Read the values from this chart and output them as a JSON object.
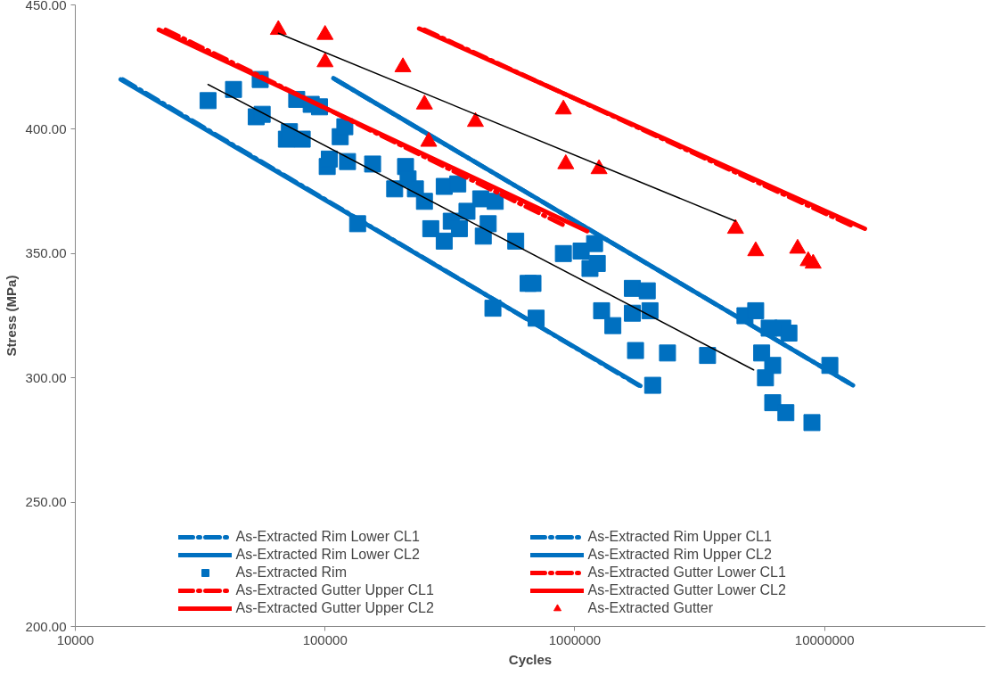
{
  "chart_data": {
    "type": "scatter",
    "xlabel": "Cycles",
    "ylabel": "Stress (MPa)",
    "log": "x",
    "grid": false,
    "legend": "bottom",
    "xlim": [
      10000,
      44000000
    ],
    "xticks": [
      10000,
      100000,
      1000000,
      10000000
    ],
    "ylim": [
      200,
      450
    ],
    "yticks": [
      {
        "value": 200,
        "label": "200.00"
      },
      {
        "value": 250,
        "label": "250.00"
      },
      {
        "value": 300,
        "label": "300.00"
      },
      {
        "value": 350,
        "label": "350.00"
      },
      {
        "value": 400,
        "label": "400.00"
      },
      {
        "value": 450,
        "label": "450.00"
      }
    ],
    "series": [
      {
        "name": "As-Extracted Rim Lower CL1",
        "type": "line",
        "line_style": "dashed",
        "color": "#0070c0",
        "x": [
          15500,
          1800000
        ],
        "values": [
          420,
          297
        ]
      },
      {
        "name": "As-Extracted Rim Upper CL1",
        "type": "line",
        "line_style": "dashed",
        "color": "#0070c0",
        "x": [
          110000,
          12500000
        ],
        "values": [
          420,
          298
        ]
      },
      {
        "name": "As-Extracted Rim Lower CL2",
        "type": "line",
        "line_style": "solid",
        "color": "#0070c0",
        "x": [
          15200,
          1830000
        ],
        "values": [
          420,
          296.8
        ]
      },
      {
        "name": "As-Extracted Rim Upper CL2",
        "type": "line",
        "line_style": "solid",
        "color": "#0070c0",
        "x": [
          108000,
          13000000
        ],
        "values": [
          420.5,
          297
        ]
      },
      {
        "name": "As-Extracted Rim",
        "marker": "square",
        "color": "#0070c0",
        "x": [
          34000,
          43000,
          55000,
          53000,
          56000,
          70000,
          72000,
          77000,
          81000,
          88000,
          95000,
          102000,
          104000,
          115000,
          120000,
          123000,
          135000,
          155000,
          190000,
          210000,
          215000,
          230000,
          250000,
          265000,
          300000,
          300000,
          320000,
          340000,
          345000,
          370000,
          420000,
          430000,
          450000,
          470000,
          480000,
          580000,
          650000,
          700000,
          680000,
          900000,
          1060000,
          1150000,
          1200000,
          1230000,
          1280000,
          1420000,
          1700000,
          1700000,
          1750000,
          1950000,
          2000000,
          2050000,
          2350000,
          3400000,
          4800000,
          5300000,
          5600000,
          5800000,
          6000000,
          6200000,
          6800000,
          7200000,
          6200000,
          7000000,
          8900000,
          10500000
        ],
        "values": [
          411.5,
          416,
          420,
          405,
          406,
          396,
          399,
          412,
          396,
          410,
          409,
          385,
          388,
          397,
          401,
          387,
          362,
          386,
          376,
          385,
          380,
          376,
          371,
          360,
          355,
          377,
          363,
          378,
          360,
          367,
          372,
          357,
          362,
          328,
          371,
          355,
          338,
          324,
          338,
          350,
          351,
          344,
          354,
          346,
          327,
          321,
          336,
          326,
          311,
          335,
          327,
          297,
          310,
          309,
          325,
          327,
          310,
          300,
          320,
          305,
          320,
          318,
          290,
          286,
          282,
          305
        ]
      },
      {
        "name": "As-Extracted Gutter Lower CL1",
        "type": "line",
        "line_style": "dashed",
        "color": "#ff0000",
        "x": [
          23000,
          920000
        ],
        "values": [
          440,
          361
        ]
      },
      {
        "name": "As-Extracted Gutter Upper CL1",
        "type": "line",
        "line_style": "dashed",
        "color": "#ff0000",
        "x": [
          250000,
          13000000
        ],
        "values": [
          440,
          361
        ]
      },
      {
        "name": "As-Extracted Gutter Lower CL2",
        "type": "line",
        "line_style": "solid",
        "color": "#ff0000",
        "x": [
          21600,
          1120000
        ],
        "values": [
          440,
          359
        ]
      },
      {
        "name": "As-Extracted Gutter Upper CL2",
        "type": "line",
        "line_style": "solid",
        "color": "#ff0000",
        "x": [
          238000,
          14500000
        ],
        "values": [
          440.5,
          360
        ]
      },
      {
        "name": "As-Extracted Gutter",
        "marker": "triangle",
        "color": "#ff0000",
        "x": [
          65000,
          100000,
          100000,
          205000,
          250000,
          260000,
          400000,
          900000,
          920000,
          1250000,
          4400000,
          5300000,
          7800000,
          8600000,
          9000000
        ],
        "values": [
          440,
          438,
          427,
          425,
          410,
          395,
          403,
          408,
          386,
          384,
          360,
          351,
          352,
          347,
          346
        ]
      },
      {
        "type": "line",
        "line_style": "solid",
        "color": "#000000",
        "x": [
          34000,
          5200000
        ],
        "values": [
          418,
          303.2
        ]
      },
      {
        "type": "line",
        "line_style": "solid",
        "color": "#000000",
        "x": [
          65000,
          4400000
        ],
        "values": [
          438.6,
          363
        ]
      }
    ]
  }
}
